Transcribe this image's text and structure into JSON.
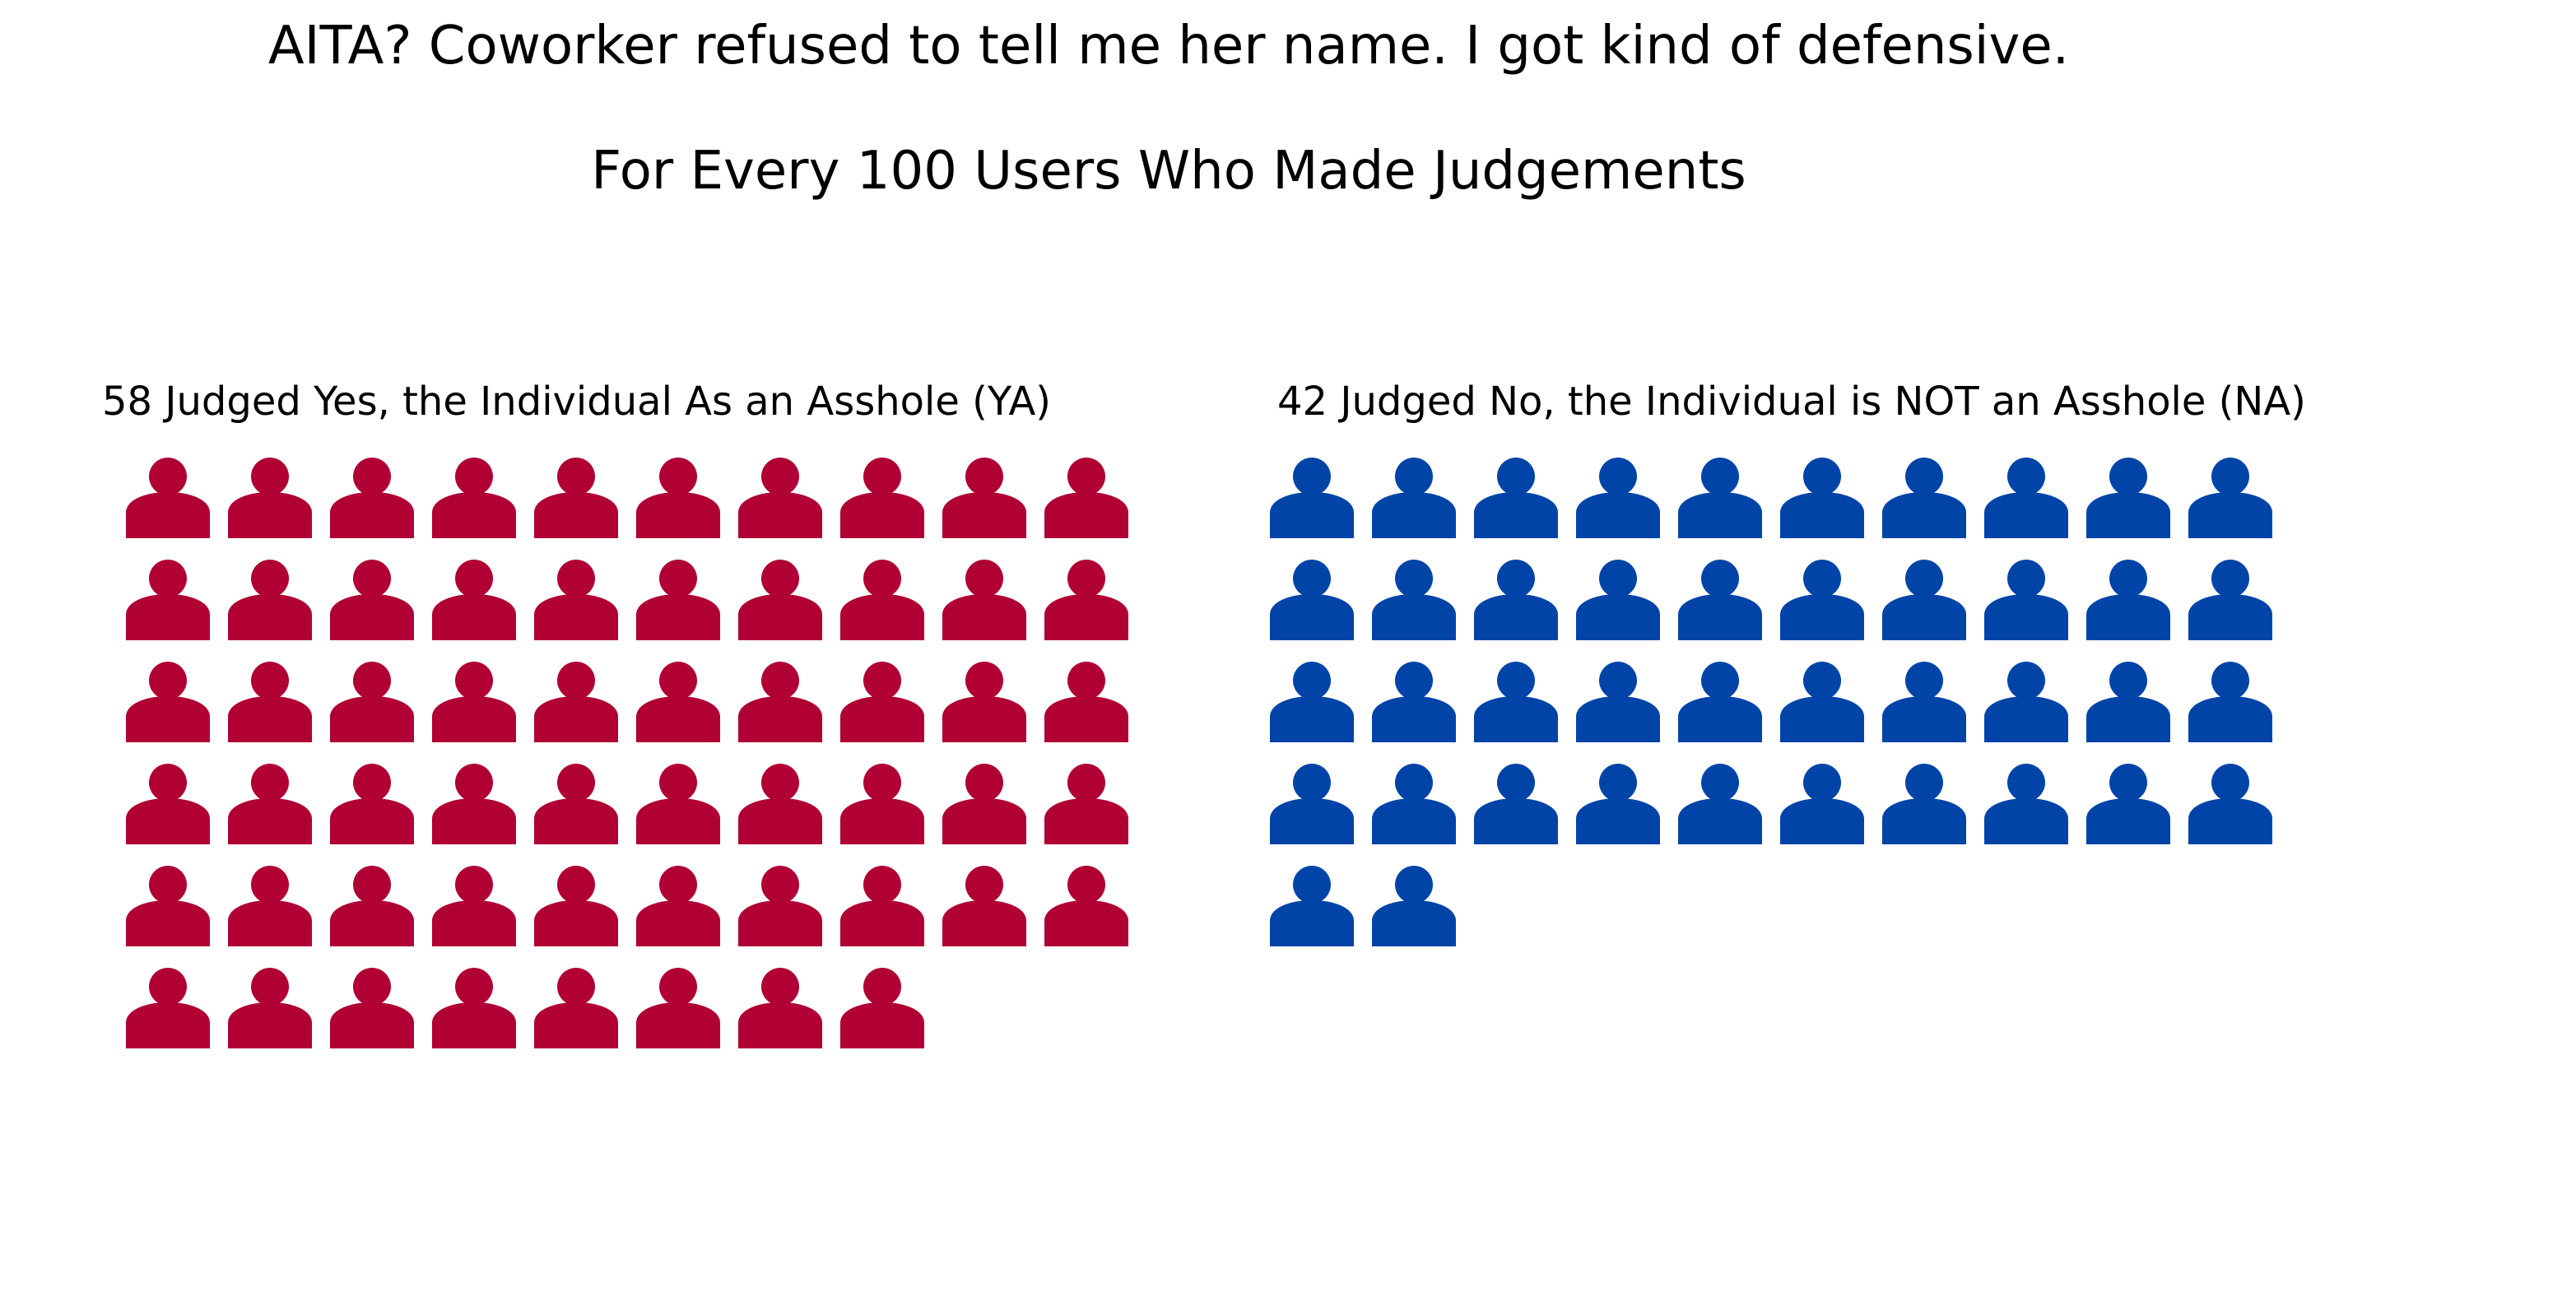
{
  "title": "AITA? Coworker refused to tell me her name. I got kind of defensive.",
  "subtitle": "For Every 100 Users Who Made Judgements",
  "chart_data": {
    "type": "pictogram",
    "title": "AITA? Coworker refused to tell me her name. I got kind of defensive.",
    "subtitle": "For Every 100 Users Who Made Judgements",
    "icon": "person-icon",
    "icons_per_row": 10,
    "total": 100,
    "series": [
      {
        "name": "YA",
        "label": "58 Judged Yes, the Individual As an Asshole (YA)",
        "value": 58,
        "color": "#b00034"
      },
      {
        "name": "NA",
        "label": "42 Judged No, the Individual is NOT an Asshole (NA)",
        "value": 42,
        "color": "#0044a8"
      }
    ],
    "grid": false,
    "legend": "none"
  }
}
